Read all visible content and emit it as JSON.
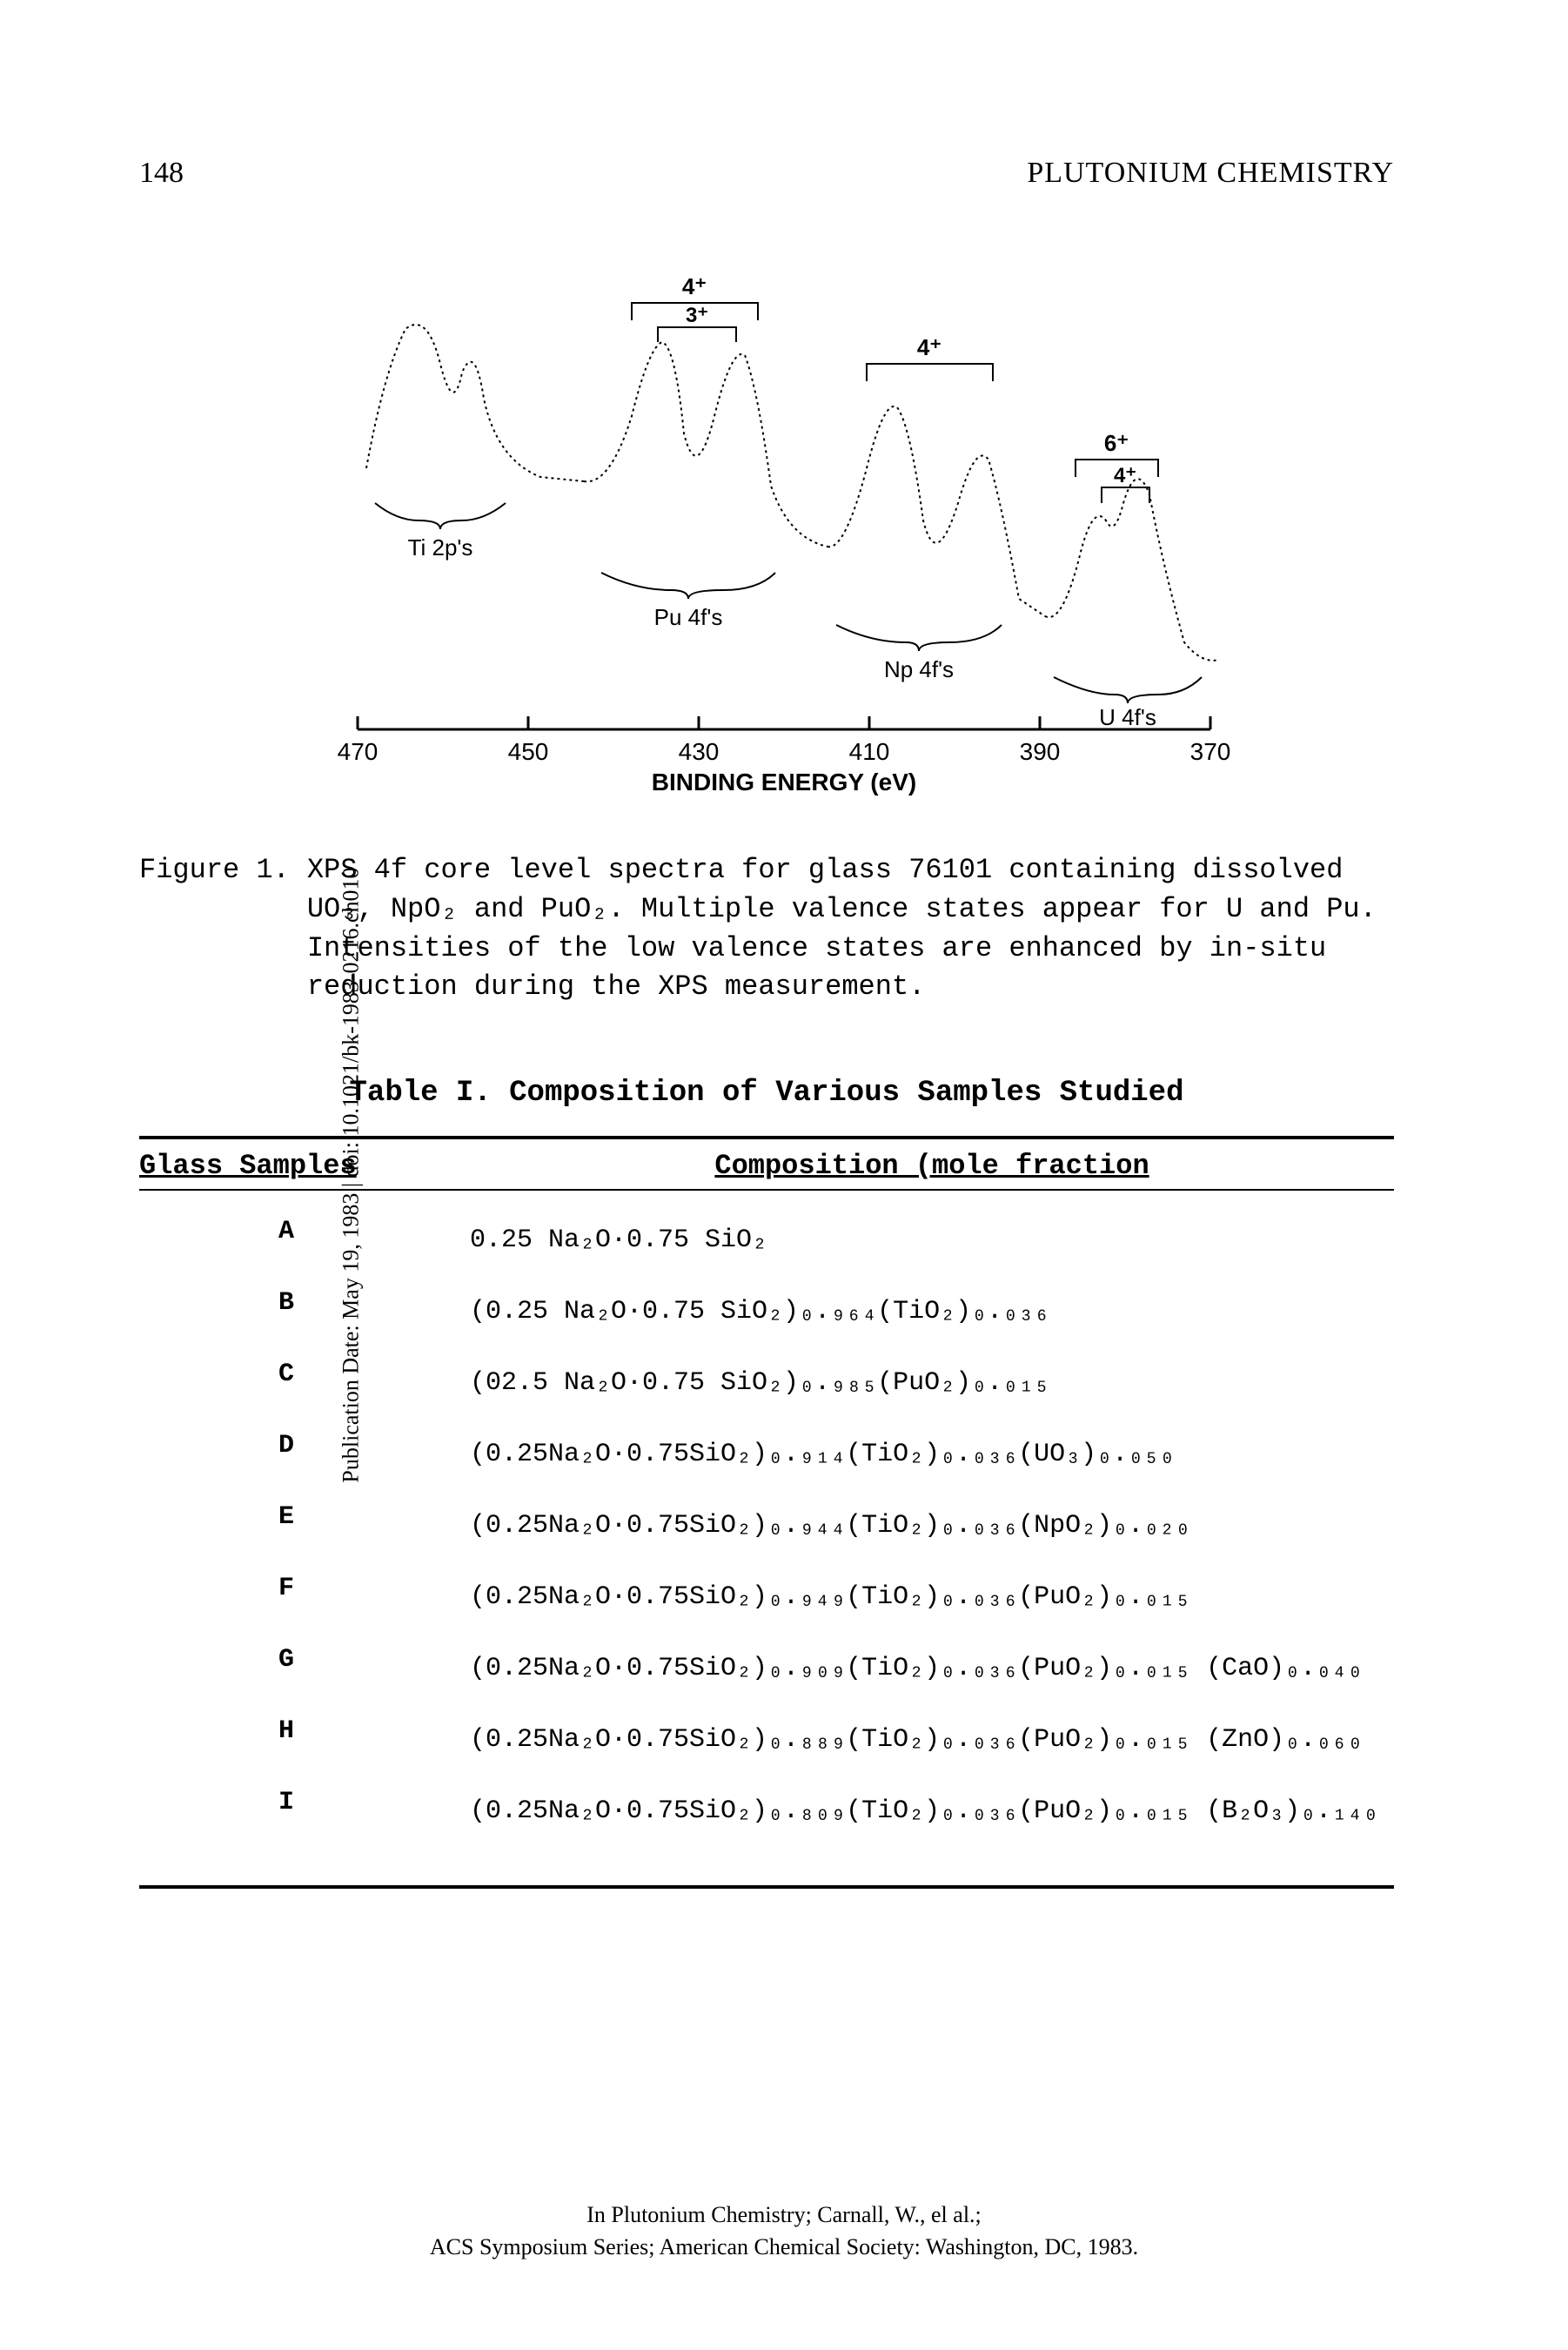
{
  "page": {
    "number": "148",
    "chapterTitle": "PLUTONIUM CHEMISTRY"
  },
  "sidebar": "Publication Date: May 19, 1983 | doi: 10.1021/bk-1983-0216.ch010",
  "figure": {
    "xAxisLabel": "BINDING ENERGY (eV)",
    "xTicks": [
      "470",
      "450",
      "430",
      "410",
      "390",
      "370"
    ],
    "peakLabels": {
      "ti": "Ti 2p's",
      "pu": "Pu 4f's",
      "np": "Np 4f's",
      "u": "U 4f's"
    },
    "valenceLabels": [
      "4⁺",
      "3⁺",
      "4⁺",
      "6⁺",
      "4⁺"
    ],
    "caption": {
      "label": "Figure 1.",
      "text": "XPS 4f core level spectra for glass 76101 containing dissolved UO₃, NpO₂ and PuO₂.  Multiple valence states appear for U and Pu.  Intensities of the low valence states are enhanced by in-situ reduction during the XPS measurement."
    }
  },
  "table": {
    "title": "Table I.  Composition of Various Samples Studied",
    "headers": {
      "col1": "Glass Samples",
      "col2": "Composition (mole fraction"
    },
    "rows": [
      {
        "sample": "A",
        "comp": "0.25 Na₂O·0.75 SiO₂"
      },
      {
        "sample": "B",
        "comp": "(0.25 Na₂O·0.75 SiO₂)₀.₉₆₄(TiO₂)₀.₀₃₆"
      },
      {
        "sample": "C",
        "comp": "(02.5 Na₂O·0.75 SiO₂)₀.₉₈₅(PuO₂)₀.₀₁₅"
      },
      {
        "sample": "D",
        "comp": "(0.25Na₂O·0.75SiO₂)₀.₉₁₄(TiO₂)₀.₀₃₆(UO₃)₀.₀₅₀"
      },
      {
        "sample": "E",
        "comp": "(0.25Na₂O·0.75SiO₂)₀.₉₄₄(TiO₂)₀.₀₃₆(NpO₂)₀.₀₂₀"
      },
      {
        "sample": "F",
        "comp": "(0.25Na₂O·0.75SiO₂)₀.₉₄₉(TiO₂)₀.₀₃₆(PuO₂)₀.₀₁₅"
      },
      {
        "sample": "G",
        "comp": "(0.25Na₂O·0.75SiO₂)₀.₉₀₉(TiO₂)₀.₀₃₆(PuO₂)₀.₀₁₅ (CaO)₀.₀₄₀"
      },
      {
        "sample": "H",
        "comp": "(0.25Na₂O·0.75SiO₂)₀.₈₈₉(TiO₂)₀.₀₃₆(PuO₂)₀.₀₁₅ (ZnO)₀.₀₆₀"
      },
      {
        "sample": "I",
        "comp": "(0.25Na₂O·0.75SiO₂)₀.₈₀₉(TiO₂)₀.₀₃₆(PuO₂)₀.₀₁₅ (B₂O₃)₀.₁₄₀"
      }
    ]
  },
  "footer": {
    "line1": "In Plutonium Chemistry; Carnall, W., el al.;",
    "line2": "ACS Symposium Series; American Chemical Society: Washington, DC, 1983."
  },
  "colors": {
    "text": "#000000",
    "background": "#ffffff",
    "line": "#000000"
  }
}
